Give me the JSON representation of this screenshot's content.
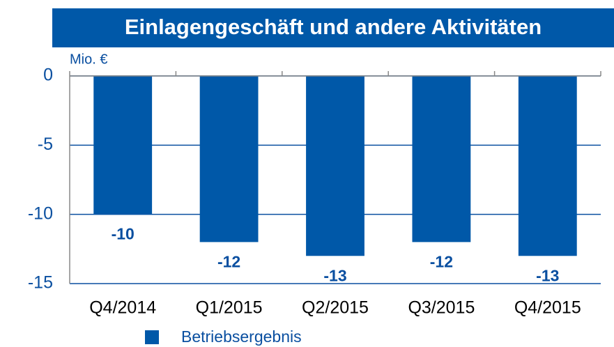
{
  "chart_data": {
    "type": "bar",
    "title": "Einlagengeschäft und andere Aktivitäten",
    "y_label": "Mio. €",
    "categories": [
      "Q4/2014",
      "Q1/2015",
      "Q2/2015",
      "Q3/2015",
      "Q4/2015"
    ],
    "series": [
      {
        "name": "Betriebsergebnis",
        "color": "#0058a8",
        "values": [
          -10,
          -12,
          -13,
          -12,
          -13
        ]
      }
    ],
    "ylim": [
      -15,
      0
    ],
    "yticks": [
      0,
      -5,
      -10,
      -15
    ],
    "grid": true,
    "legend": "bottom"
  }
}
